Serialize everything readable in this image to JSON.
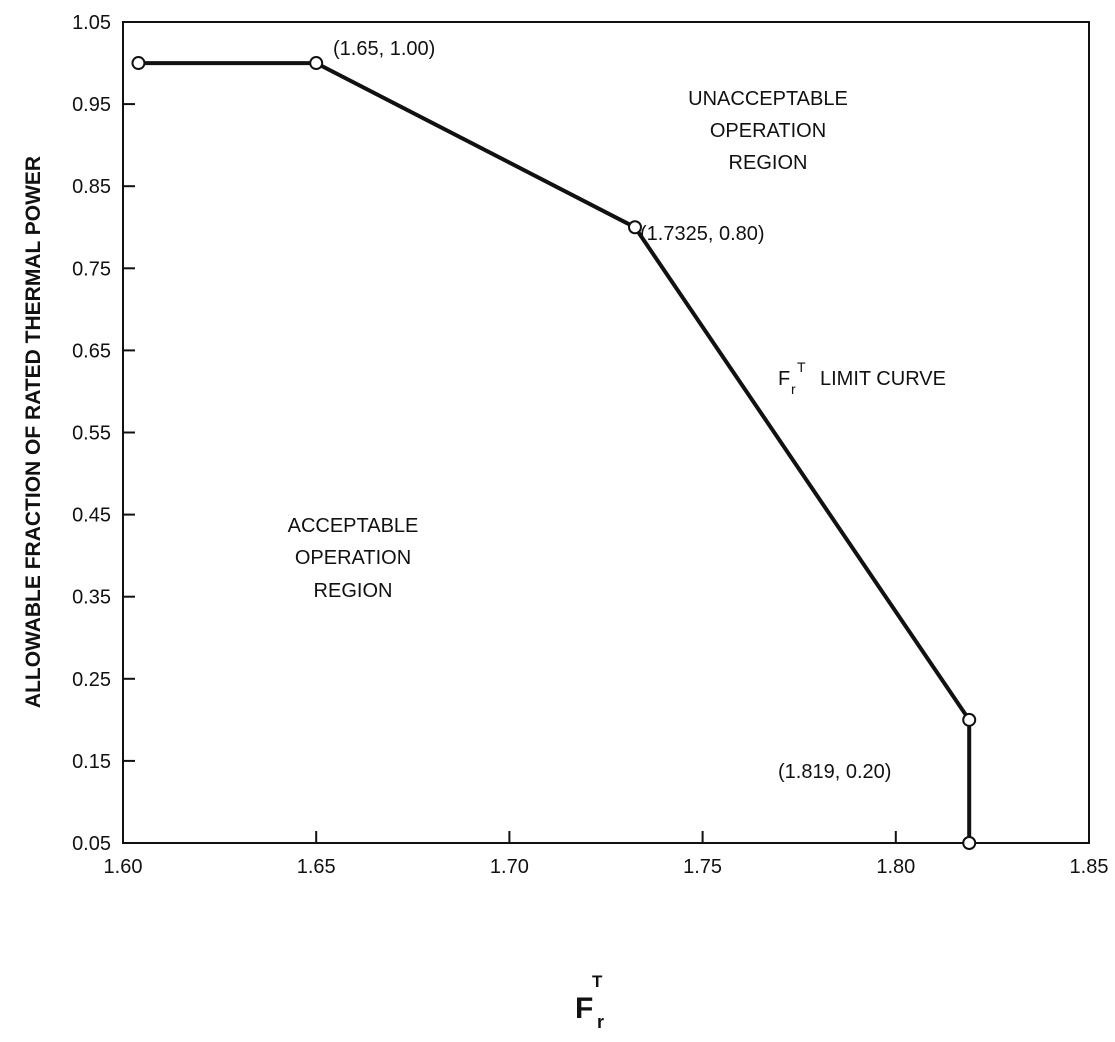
{
  "chart_data": {
    "type": "line",
    "xlabel": {
      "base": "F",
      "sup": "T",
      "sub": "r"
    },
    "ylabel": "ALLOWABLE FRACTION OF RATED THERMAL POWER",
    "xlim": [
      1.6,
      1.85
    ],
    "ylim": [
      0.05,
      1.05
    ],
    "x_ticks": [
      "1.60",
      "1.65",
      "1.70",
      "1.75",
      "1.80",
      "1.85"
    ],
    "y_ticks": [
      "0.05",
      "0.15",
      "0.25",
      "0.35",
      "0.45",
      "0.55",
      "0.65",
      "0.75",
      "0.85",
      "0.95",
      "1.05"
    ],
    "grid": false,
    "series": [
      {
        "points": [
          {
            "x": 1.604,
            "y": 1.0
          },
          {
            "x": 1.65,
            "y": 1.0
          },
          {
            "x": 1.7325,
            "y": 0.8
          },
          {
            "x": 1.819,
            "y": 0.2
          },
          {
            "x": 1.819,
            "y": 0.05
          }
        ]
      }
    ],
    "point_labels": [
      "(1.65, 1.00)",
      "(1.7325, 0.80)",
      "(1.819, 0.20)"
    ],
    "annotations": {
      "unacceptable": [
        "UNACCEPTABLE",
        "OPERATION",
        "REGION"
      ],
      "acceptable": [
        "ACCEPTABLE",
        "OPERATION",
        "REGION"
      ],
      "limit_curve": {
        "base": "F",
        "sub": "r",
        "sup": "T",
        "text": "LIMIT CURVE"
      }
    }
  }
}
